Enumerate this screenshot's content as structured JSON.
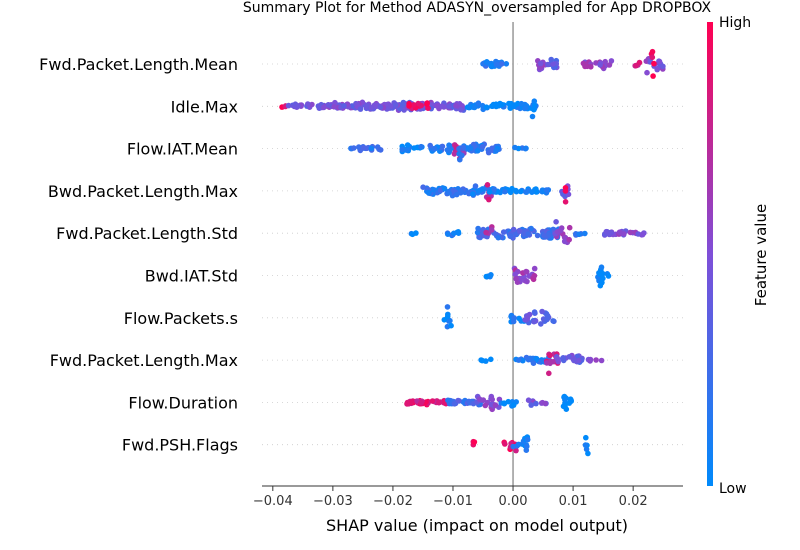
{
  "chart_data": {
    "type": "scatter",
    "subtype": "shap_beeswarm",
    "title": "Summary Plot for Method ADASYN_oversampled for App DROPBOX",
    "xlabel": "SHAP value (impact on model output)",
    "x_ticks": [
      "−0.04",
      "−0.03",
      "−0.02",
      "−0.01",
      "0.00",
      "0.01",
      "0.02"
    ],
    "x_tick_values": [
      -0.04,
      -0.03,
      -0.02,
      -0.01,
      0.0,
      0.01,
      0.02
    ],
    "xlim": [
      -0.0418,
      0.0283
    ],
    "zero_line": 0.0,
    "colorbar": {
      "label": "Feature value",
      "high_label": "High",
      "low_label": "Low",
      "low_color": "#008afb",
      "mid_color": "#7f4fd8",
      "high_color": "#ff0052"
    },
    "features": [
      {
        "name": "Fwd.Packet.Length.Mean",
        "clusters": [
          {
            "range": [
              -0.0055,
              -0.001
            ],
            "density": 10,
            "feature_value": 0.15,
            "spread": 0.22
          },
          {
            "range": [
              0.004,
              0.0055
            ],
            "density": 14,
            "feature_value": 0.5,
            "spread": 0.55
          },
          {
            "range": [
              0.0055,
              0.008
            ],
            "density": 10,
            "feature_value": 0.35,
            "spread": 0.35
          },
          {
            "range": [
              0.0115,
              0.0165
            ],
            "density": 10,
            "feature_value": 0.55,
            "spread": 0.3
          },
          {
            "range": [
              0.02,
              0.0215
            ],
            "density": 3,
            "feature_value": 0.8,
            "spread": 0.15
          },
          {
            "range": [
              0.022,
              0.025
            ],
            "density": 14,
            "feature_value": 0.5,
            "spread": 0.6
          },
          {
            "range": [
              0.023,
              0.0235
            ],
            "density": 14,
            "feature_value": 0.98,
            "spread": 0.85
          }
        ]
      },
      {
        "name": "Idle.Max",
        "clusters": [
          {
            "range": [
              -0.0385,
              -0.0375
            ],
            "density": 3,
            "feature_value": 0.95,
            "spread": 0.1
          },
          {
            "range": [
              -0.0375,
              -0.03
            ],
            "density": 10,
            "feature_value": 0.45,
            "spread": 0.15
          },
          {
            "range": [
              -0.03,
              -0.008
            ],
            "density": 18,
            "feature_value": 0.45,
            "spread": 0.25
          },
          {
            "range": [
              -0.018,
              -0.014
            ],
            "density": 6,
            "feature_value": 0.95,
            "spread": 0.3
          },
          {
            "range": [
              -0.008,
              0.004
            ],
            "density": 14,
            "feature_value": 0.05,
            "spread": 0.2
          },
          {
            "range": [
              0.003,
              0.0037
            ],
            "density": 6,
            "feature_value": 0.0,
            "spread": 0.85
          }
        ]
      },
      {
        "name": "Flow.IAT.Mean",
        "clusters": [
          {
            "range": [
              -0.0275,
              -0.022
            ],
            "density": 8,
            "feature_value": 0.2,
            "spread": 0.15
          },
          {
            "range": [
              -0.019,
              -0.015
            ],
            "density": 10,
            "feature_value": 0.05,
            "spread": 0.3
          },
          {
            "range": [
              -0.014,
              -0.002
            ],
            "density": 14,
            "feature_value": 0.15,
            "spread": 0.3
          },
          {
            "range": [
              -0.01,
              -0.008
            ],
            "density": 12,
            "feature_value": 0.7,
            "spread": 0.7
          },
          {
            "range": [
              -0.009,
              -0.0085
            ],
            "density": 8,
            "feature_value": 0.1,
            "spread": 0.9
          },
          {
            "range": [
              0.0,
              0.003
            ],
            "density": 3,
            "feature_value": 0.1,
            "spread": 0.1
          }
        ]
      },
      {
        "name": "Bwd.Packet.Length.Max",
        "clusters": [
          {
            "range": [
              -0.015,
              -0.004
            ],
            "density": 16,
            "feature_value": 0.15,
            "spread": 0.3
          },
          {
            "range": [
              -0.0045,
              -0.0035
            ],
            "density": 10,
            "feature_value": 0.75,
            "spread": 0.6
          },
          {
            "range": [
              -0.004,
              0.006
            ],
            "density": 10,
            "feature_value": 0.05,
            "spread": 0.15
          },
          {
            "range": [
              0.008,
              0.0095
            ],
            "density": 12,
            "feature_value": 0.4,
            "spread": 0.45
          },
          {
            "range": [
              0.0087,
              0.009
            ],
            "density": 10,
            "feature_value": 0.92,
            "spread": 0.95
          }
        ]
      },
      {
        "name": "Fwd.Packet.Length.Std",
        "clusters": [
          {
            "range": [
              -0.017,
              -0.016
            ],
            "density": 2,
            "feature_value": 0.0,
            "spread": 0.1
          },
          {
            "range": [
              -0.0115,
              -0.009
            ],
            "density": 6,
            "feature_value": 0.1,
            "spread": 0.2
          },
          {
            "range": [
              -0.006,
              0.008
            ],
            "density": 18,
            "feature_value": 0.25,
            "spread": 0.35
          },
          {
            "range": [
              -0.0045,
              -0.0035
            ],
            "density": 6,
            "feature_value": 0.75,
            "spread": 0.5
          },
          {
            "range": [
              0.007,
              0.0095
            ],
            "density": 14,
            "feature_value": 0.55,
            "spread": 0.9
          },
          {
            "range": [
              0.01,
              0.0125
            ],
            "density": 4,
            "feature_value": 0.2,
            "spread": 0.15
          },
          {
            "range": [
              0.014,
              0.022
            ],
            "density": 8,
            "feature_value": 0.5,
            "spread": 0.15
          }
        ]
      },
      {
        "name": "Bwd.IAT.Std",
        "clusters": [
          {
            "range": [
              -0.0045,
              -0.003
            ],
            "density": 6,
            "feature_value": 0.05,
            "spread": 0.2
          },
          {
            "range": [
              0.0,
              0.004
            ],
            "density": 14,
            "feature_value": 0.6,
            "spread": 0.5
          },
          {
            "range": [
              0.014,
              0.016
            ],
            "density": 10,
            "feature_value": 0.0,
            "spread": 0.55
          },
          {
            "range": [
              0.0145,
              0.015
            ],
            "density": 8,
            "feature_value": 0.0,
            "spread": 0.9
          }
        ]
      },
      {
        "name": "Flow.Packets.s",
        "clusters": [
          {
            "range": [
              -0.0115,
              -0.01
            ],
            "density": 10,
            "feature_value": 0.05,
            "spread": 0.85
          },
          {
            "range": [
              -0.0005,
              0.002
            ],
            "density": 6,
            "feature_value": 0.1,
            "spread": 0.3
          },
          {
            "range": [
              0.002,
              0.007
            ],
            "density": 12,
            "feature_value": 0.35,
            "spread": 0.45
          }
        ]
      },
      {
        "name": "Fwd.Packet.Length.Max",
        "clusters": [
          {
            "range": [
              -0.0055,
              -0.0035
            ],
            "density": 2,
            "feature_value": 0.0,
            "spread": 0.1
          },
          {
            "range": [
              0.0005,
              0.006
            ],
            "density": 12,
            "feature_value": 0.1,
            "spread": 0.2
          },
          {
            "range": [
              0.0055,
              0.0075
            ],
            "density": 14,
            "feature_value": 0.75,
            "spread": 0.85
          },
          {
            "range": [
              0.007,
              0.0115
            ],
            "density": 12,
            "feature_value": 0.4,
            "spread": 0.3
          },
          {
            "range": [
              0.0125,
              0.015
            ],
            "density": 3,
            "feature_value": 0.5,
            "spread": 0.1
          }
        ]
      },
      {
        "name": "Flow.Duration",
        "clusters": [
          {
            "range": [
              -0.018,
              -0.011
            ],
            "density": 14,
            "feature_value": 0.85,
            "spread": 0.15
          },
          {
            "range": [
              -0.011,
              -0.005
            ],
            "density": 12,
            "feature_value": 0.25,
            "spread": 0.2
          },
          {
            "range": [
              -0.006,
              -0.002
            ],
            "density": 12,
            "feature_value": 0.5,
            "spread": 0.5
          },
          {
            "range": [
              -0.002,
              0.001
            ],
            "density": 6,
            "feature_value": 0.05,
            "spread": 0.25
          },
          {
            "range": [
              0.0025,
              0.006
            ],
            "density": 6,
            "feature_value": 0.45,
            "spread": 0.2
          },
          {
            "range": [
              0.008,
              0.01
            ],
            "density": 8,
            "feature_value": 0.0,
            "spread": 0.35
          },
          {
            "range": [
              0.0085,
              0.009
            ],
            "density": 8,
            "feature_value": 0.0,
            "spread": 0.9
          }
        ]
      },
      {
        "name": "Fwd.PSH.Flags",
        "clusters": [
          {
            "range": [
              -0.0068,
              -0.006
            ],
            "density": 4,
            "feature_value": 1.0,
            "spread": 0.3
          },
          {
            "range": [
              -0.0015,
              0.0005
            ],
            "density": 12,
            "feature_value": 0.9,
            "spread": 0.45
          },
          {
            "range": [
              0.0,
              0.0025
            ],
            "density": 12,
            "feature_value": 0.1,
            "spread": 0.55
          },
          {
            "range": [
              0.0118,
              0.0125
            ],
            "density": 10,
            "feature_value": 0.0,
            "spread": 0.9
          }
        ]
      }
    ]
  }
}
